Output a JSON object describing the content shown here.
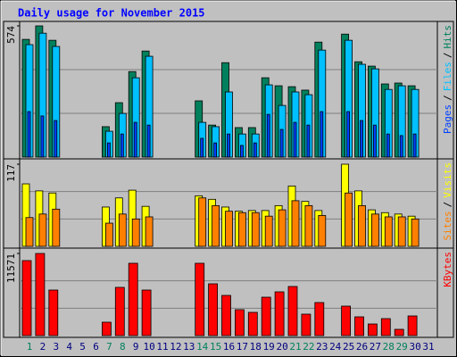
{
  "title": "Daily usage for November 2015",
  "legend_separator": "/",
  "chart_data": [
    {
      "type": "bar",
      "ylim": [
        0,
        574
      ],
      "yticks": [
        574
      ],
      "series": [
        {
          "name": "Hits",
          "color": "#00805c",
          "values": [
            515,
            574,
            511,
            0,
            0,
            0,
            133,
            238,
            374,
            464,
            0,
            0,
            0,
            246,
            140,
            413,
            129,
            129,
            347,
            312,
            308,
            293,
            503,
            0,
            538,
            417,
            398,
            320,
            324,
            312,
            0
          ]
        },
        {
          "name": "Files",
          "color": "#00c0ff",
          "values": [
            492,
            542,
            484,
            0,
            0,
            0,
            113,
            191,
            347,
            441,
            0,
            0,
            0,
            152,
            133,
            285,
            101,
            101,
            316,
            226,
            285,
            273,
            468,
            0,
            511,
            406,
            386,
            296,
            312,
            296,
            0
          ]
        },
        {
          "name": "Pages",
          "color": "#0040ff",
          "values": [
            199,
            180,
            160,
            0,
            0,
            0,
            62,
            101,
            152,
            140,
            0,
            0,
            0,
            82,
            62,
            101,
            51,
            62,
            187,
            121,
            152,
            140,
            199,
            0,
            199,
            160,
            140,
            101,
            94,
            101,
            0
          ]
        }
      ]
    },
    {
      "type": "bar",
      "ylim": [
        0,
        117
      ],
      "yticks": [
        117
      ],
      "series": [
        {
          "name": "Visits",
          "color": "#ffff00",
          "values": [
            89,
            79,
            76,
            0,
            0,
            0,
            56,
            69,
            80,
            57,
            0,
            0,
            0,
            72,
            67,
            56,
            50,
            51,
            51,
            58,
            86,
            64,
            51,
            0,
            117,
            79,
            52,
            48,
            46,
            43,
            0
          ]
        },
        {
          "name": "Sites",
          "color": "#ff8000",
          "values": [
            41,
            46,
            53,
            0,
            0,
            0,
            33,
            46,
            39,
            42,
            0,
            0,
            0,
            69,
            58,
            50,
            48,
            48,
            43,
            52,
            65,
            58,
            44,
            0,
            76,
            58,
            46,
            42,
            42,
            39,
            0
          ]
        }
      ]
    },
    {
      "type": "bar",
      "ylim": [
        0,
        11571
      ],
      "yticks": [
        11571
      ],
      "categories": [
        "1",
        "2",
        "3",
        "4",
        "5",
        "6",
        "7",
        "8",
        "9",
        "10",
        "11",
        "12",
        "13",
        "14",
        "15",
        "16",
        "17",
        "18",
        "19",
        "20",
        "21",
        "22",
        "23",
        "24",
        "25",
        "26",
        "27",
        "28",
        "29",
        "30",
        "31"
      ],
      "category_colors": [
        "#00805c",
        "#000080",
        "#000080",
        "#000080",
        "#000080",
        "#000080",
        "#00805c",
        "#00805c",
        "#000080",
        "#000080",
        "#000080",
        "#000080",
        "#000080",
        "#00805c",
        "#00805c",
        "#000080",
        "#000080",
        "#000080",
        "#000080",
        "#000080",
        "#00805c",
        "#00805c",
        "#000080",
        "#000080",
        "#000080",
        "#000080",
        "#000080",
        "#00805c",
        "#00805c",
        "#000080",
        "#000080"
      ],
      "series": [
        {
          "name": "KBytes",
          "color": "#ff0000",
          "values": [
            10568,
            11571,
            6416,
            0,
            0,
            0,
            1887,
            6794,
            10190,
            6416,
            0,
            0,
            0,
            10190,
            7297,
            5661,
            3648,
            3271,
            5409,
            6164,
            6919,
            3019,
            4655,
            0,
            4151,
            2642,
            1635,
            2390,
            881,
            2768,
            0
          ]
        }
      ]
    }
  ]
}
